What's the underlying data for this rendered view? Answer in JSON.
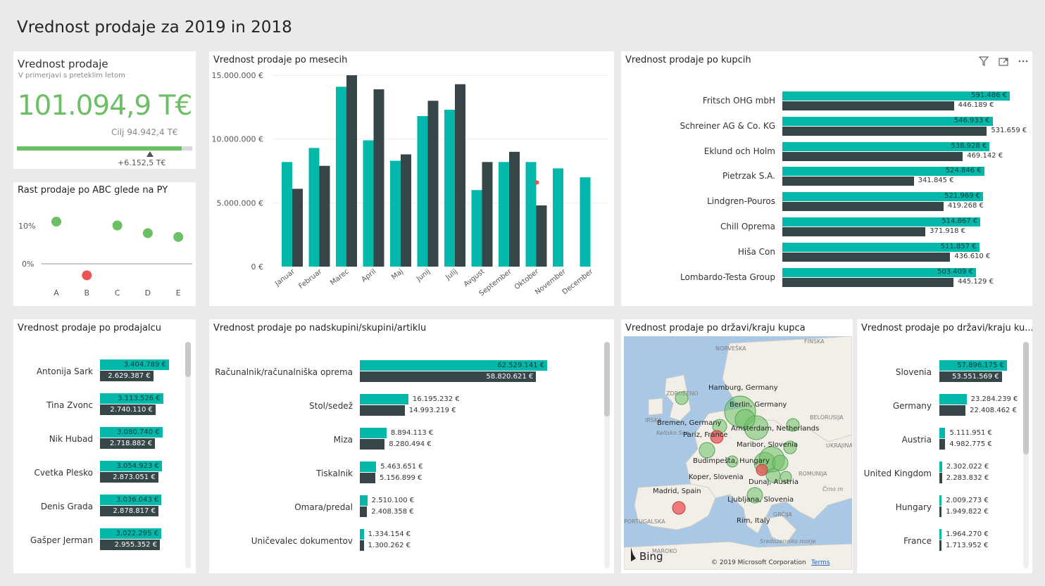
{
  "page_title": "Vrednost prodaje za 2019 in 2018",
  "colors": {
    "current": "#01b8aa",
    "previous": "#374649",
    "positive": "#6cbf64",
    "negative": "#e85555"
  },
  "kpi": {
    "title": "Vrednost prodaje",
    "subtitle": "V primerjavi s preteklim letom",
    "value": "101.094,9 T€",
    "target": "Cilj 94.942,4 T€",
    "delta": "+6.152,5 T€",
    "progress_fraction": 0.94
  },
  "abc": {
    "title": "Rast prodaje po ABC glede na PY",
    "yticks": [
      "10%",
      "0%"
    ],
    "chart_data": {
      "type": "scatter",
      "categories": [
        "A",
        "B",
        "C",
        "D",
        "E"
      ],
      "values": [
        11,
        -3,
        10,
        8,
        7
      ],
      "ylim": [
        -4,
        14
      ]
    }
  },
  "monthly": {
    "title": "Vrednost prodaje po mesecih",
    "yticks": [
      "15.000.000 €",
      "10.000.000 €",
      "5.000.000 €",
      "0 €"
    ],
    "chart_data": {
      "type": "bar",
      "categories": [
        "Januar",
        "Februar",
        "Marec",
        "April",
        "Maj",
        "Junij",
        "Julij",
        "Avgust",
        "September",
        "Oktober",
        "November",
        "December"
      ],
      "series": [
        {
          "values": [
            8200000,
            9300000,
            14100000,
            9900000,
            8300000,
            11800000,
            12300000,
            6000000,
            8200000,
            8200000,
            7700000,
            7000000
          ]
        },
        {
          "values": [
            6100000,
            7900000,
            15000000,
            13900000,
            8800000,
            13000000,
            14300000,
            8200000,
            9000000,
            4800000,
            null,
            null
          ]
        }
      ],
      "marker_value": 6600000,
      "marker_month": "Oktober",
      "ylim": [
        0,
        15000000
      ]
    }
  },
  "customers": {
    "title": "Vrednost prodaje po kupcih",
    "chart_data": {
      "type": "bar",
      "categories": [
        "Fritsch OHG mbH",
        "Schreiner AG & Co. KG",
        "Eklund och Holm",
        "Pietrzak S.A.",
        "Lindgren-Pouros",
        "Chill Oprema",
        "Hiša Con",
        "Lombardo-Testa Group"
      ],
      "series": [
        {
          "values": [
            591486,
            546933,
            538928,
            524846,
            521969,
            514867,
            511857,
            503409
          ],
          "labels": [
            "591.486 €",
            "546.933 €",
            "538.928 €",
            "524.846 €",
            "521.969 €",
            "514.867 €",
            "511.857 €",
            "503.409 €"
          ]
        },
        {
          "values": [
            446189,
            531659,
            469142,
            341845,
            419268,
            371918,
            436610,
            445129
          ],
          "labels": [
            "446.189 €",
            "531.659 €",
            "469.142 €",
            "341.845 €",
            "419.268 €",
            "371.918 €",
            "436.610 €",
            "445.129 €"
          ]
        }
      ],
      "xmax": 591486
    }
  },
  "salespeople": {
    "title": "Vrednost prodaje po prodajalcu",
    "chart_data": {
      "type": "bar",
      "categories": [
        "Antonija Sark",
        "Tina Zvonc",
        "Nik Hubad",
        "Cvetka Plesko",
        "Denis Grada",
        "Gašper Jerman"
      ],
      "series": [
        {
          "values": [
            3404789,
            3113526,
            3080740,
            3054923,
            3036043,
            3022295
          ],
          "labels": [
            "3.404.789 €",
            "3.113.526 €",
            "3.080.740 €",
            "3.054.923 €",
            "3.036.043 €",
            "3.022.295 €"
          ]
        },
        {
          "values": [
            2629387,
            2740110,
            2718882,
            2873051,
            2878817,
            2955352
          ],
          "labels": [
            "2.629.387 €",
            "2.740.110 €",
            "2.718.882 €",
            "2.873.051 €",
            "2.878.817 €",
            "2.955.352 €"
          ]
        }
      ],
      "xmax": 3404789
    }
  },
  "groups": {
    "title": "Vrednost prodaje po nadskupini/skupini/artiklu",
    "chart_data": {
      "type": "bar",
      "categories": [
        "Računalnik/računalniška oprema",
        "Stol/sedež",
        "Miza",
        "Tiskalnik",
        "Omara/predal",
        "Uničevalec dokumentov"
      ],
      "series": [
        {
          "values": [
            62529141,
            16195232,
            8894113,
            5463651,
            2510100,
            1334154
          ],
          "labels": [
            "62.529.141 €",
            "16.195.232 €",
            "8.894.113 €",
            "5.463.651 €",
            "2.510.100 €",
            "1.334.154 €"
          ]
        },
        {
          "values": [
            58820621,
            14993219,
            8280494,
            5156899,
            2408358,
            1300262
          ],
          "labels": [
            "58.820.621 €",
            "14.993.219 €",
            "8.280.494 €",
            "5.156.899 €",
            "2.408.358 €",
            "1.300.262 €"
          ]
        }
      ],
      "xmax": 62529141
    }
  },
  "map": {
    "title": "Vrednost prodaje po državi/kraju kupca",
    "copyright": "© 2019 Microsoft Corporation",
    "terms": "Terms",
    "brand": "Bing",
    "places": [
      {
        "name": "Hamburg, Germany"
      },
      {
        "name": "Berlin, Germany"
      },
      {
        "name": "Bremen, Germany"
      },
      {
        "name": "Amsterdam, Netherlands"
      },
      {
        "name": "Pariz, France"
      },
      {
        "name": "Maribor, Slovenia"
      },
      {
        "name": "Budimpešta, Hungary"
      },
      {
        "name": "Koper, Slovenia"
      },
      {
        "name": "Dunaj, Austria"
      },
      {
        "name": "Madrid, Spain"
      },
      {
        "name": "Ljubljana, Slovenia"
      },
      {
        "name": "Rim, Italy"
      }
    ],
    "regions": [
      "NORVEŠKA",
      "FINSKA",
      "ZDRUŽENO KRALJESTVO VELIKE BRITANIJA IN S. IRSKA",
      "IRSKA",
      "BELORUSIJA",
      "UKRAJINA",
      "ROMUNIJA",
      "PORTUGALSKA",
      "GRČIJA",
      "MAROKO",
      "Keltsko Sea",
      "Črno m",
      "Sredozemsko morje"
    ]
  },
  "countries": {
    "title": "Vrednost prodaje po državi/kraju ku...",
    "chart_data": {
      "type": "bar",
      "categories": [
        "Slovenia",
        "Germany",
        "Austria",
        "United Kingdom",
        "Hungary",
        "France"
      ],
      "series": [
        {
          "values": [
            57896175,
            23284239,
            5111951,
            2302022,
            2009273,
            1964270
          ],
          "labels": [
            "57.896.175 €",
            "23.284.239 €",
            "5.111.951 €",
            "2.302.022 €",
            "2.009.273 €",
            "1.964.270 €"
          ]
        },
        {
          "values": [
            53551569,
            22408462,
            4982775,
            2283832,
            1949822,
            1713952
          ],
          "labels": [
            "53.551.569 €",
            "22.408.462 €",
            "4.982.775 €",
            "2.283.832 €",
            "1.949.822 €",
            "1.713.952 €"
          ]
        }
      ],
      "xmax": 57896175
    }
  }
}
